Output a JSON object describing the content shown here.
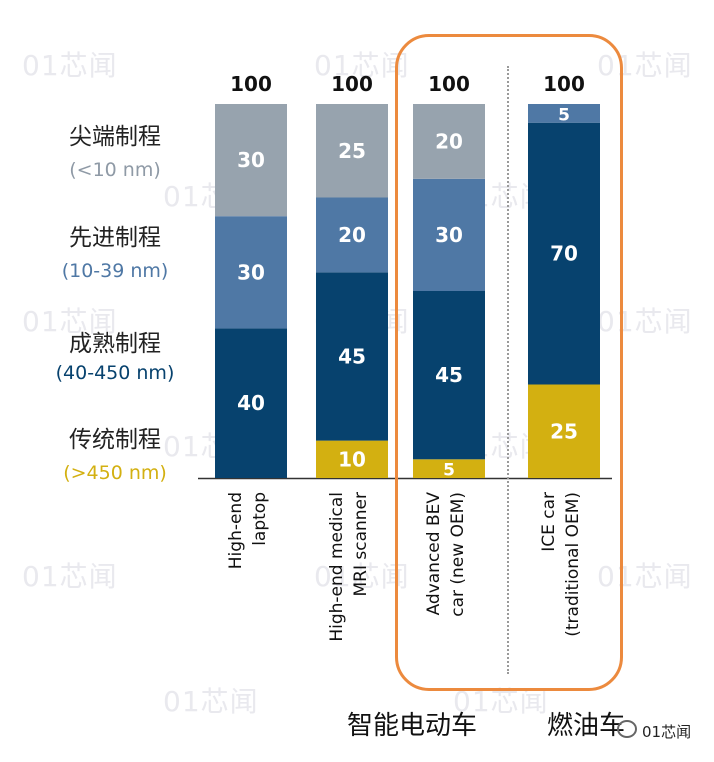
{
  "watermark": "01芯闻",
  "categories_legend": [
    {
      "cn": "尖端制程",
      "nm": "(<10 nm)",
      "color": "#97a3ae",
      "nm_color": "#8f9aa6"
    },
    {
      "cn": "先进制程",
      "nm": "(10-39 nm)",
      "color": "#4f78a5",
      "nm_color": "#4f78a5"
    },
    {
      "cn": "成熟制程",
      "nm": "(40-450 nm)",
      "color": "#07426e",
      "nm_color": "#07426e"
    },
    {
      "cn": "传统制程",
      "nm": "(>450 nm)",
      "color": "#d3b011",
      "nm_color": "#d3b011"
    }
  ],
  "group_labels": {
    "ev": "智能电动车",
    "ice": "燃油车"
  },
  "source_label": "01芯闻",
  "chart_data": {
    "type": "bar",
    "stacked": true,
    "orientation": "vertical",
    "categories": [
      "High-end laptop",
      "High-end medical MRI scanner",
      "Advanced BEV car (new OEM)",
      "ICE car (traditional OEM)"
    ],
    "category_lines": [
      [
        "High-end",
        "laptop"
      ],
      [
        "High-end medical",
        "MRI scanner"
      ],
      [
        "Advanced BEV",
        "car (new OEM)"
      ],
      [
        "ICE car",
        "(traditional OEM)"
      ]
    ],
    "totals": [
      "100",
      "100",
      "100",
      "100"
    ],
    "series": [
      {
        "name": "尖端制程 (<10 nm)",
        "color": "#97a3ae",
        "values": [
          30,
          25,
          20,
          0
        ]
      },
      {
        "name": "先进制程 (10-39 nm)",
        "color": "#4f78a5",
        "values": [
          30,
          20,
          30,
          5
        ]
      },
      {
        "name": "成熟制程 (40-450 nm)",
        "color": "#07426e",
        "values": [
          40,
          45,
          45,
          70
        ]
      },
      {
        "name": "传统制程 (>450 nm)",
        "color": "#d3b011",
        "values": [
          0,
          10,
          5,
          25
        ]
      }
    ],
    "ylim": [
      0,
      100
    ],
    "xlabel": "",
    "ylabel": "",
    "title": "",
    "grid": false,
    "legend": "left",
    "highlight_color": "#ec8a3e"
  }
}
